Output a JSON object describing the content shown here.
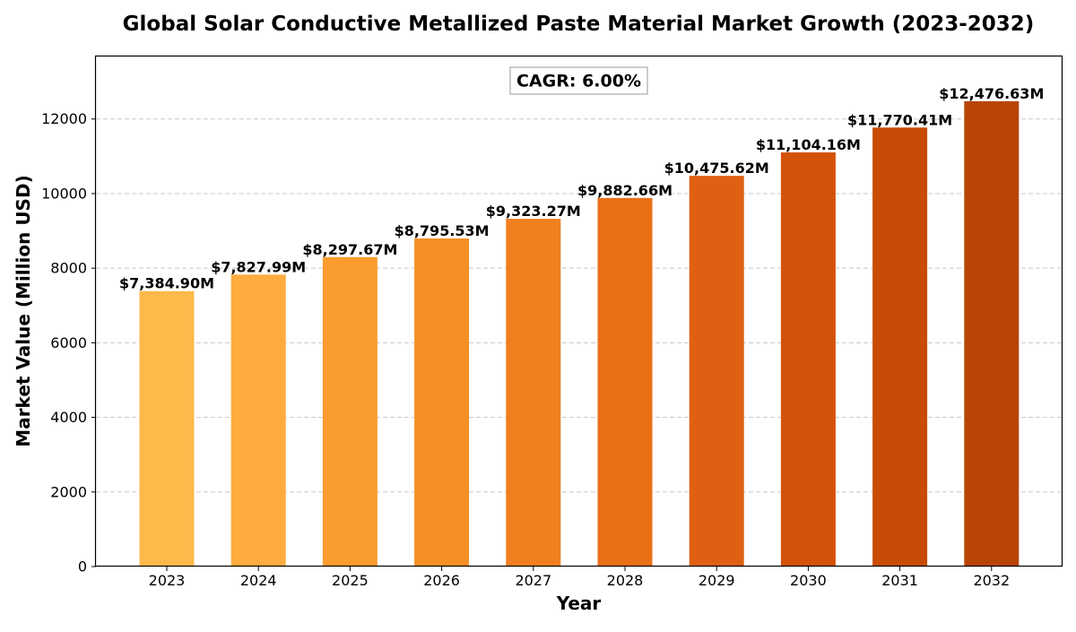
{
  "chart_data": {
    "type": "bar",
    "title": "Global Solar Conductive Metallized Paste Material Market Growth (2023-2032)",
    "xlabel": "Year",
    "ylabel": "Market Value (Million USD)",
    "categories": [
      "2023",
      "2024",
      "2025",
      "2026",
      "2027",
      "2028",
      "2029",
      "2030",
      "2031",
      "2032"
    ],
    "values": [
      7384.9,
      7827.99,
      8297.67,
      8795.53,
      9323.27,
      9882.66,
      10475.62,
      11104.16,
      11770.41,
      12476.63
    ],
    "data_labels": [
      "$7,384.90M",
      "$7,827.99M",
      "$8,297.67M",
      "$8,795.53M",
      "$9,323.27M",
      "$9,882.66M",
      "$10,475.62M",
      "$11,104.16M",
      "$11,770.41M",
      "$12,476.63M"
    ],
    "colors": [
      "#fdb94a",
      "#fdac3d",
      "#fb9c2f",
      "#f68f26",
      "#f07f1f",
      "#ea6f17",
      "#df6012",
      "#d5520a",
      "#c84c05",
      "#b84506"
    ],
    "ylim": [
      0,
      13700
    ],
    "yticks": [
      0,
      2000,
      4000,
      6000,
      8000,
      10000,
      12000
    ],
    "ytick_labels": [
      "0",
      "2000",
      "4000",
      "6000",
      "8000",
      "10000",
      "12000"
    ],
    "grid": true,
    "annotation": "CAGR: 6.00%"
  }
}
